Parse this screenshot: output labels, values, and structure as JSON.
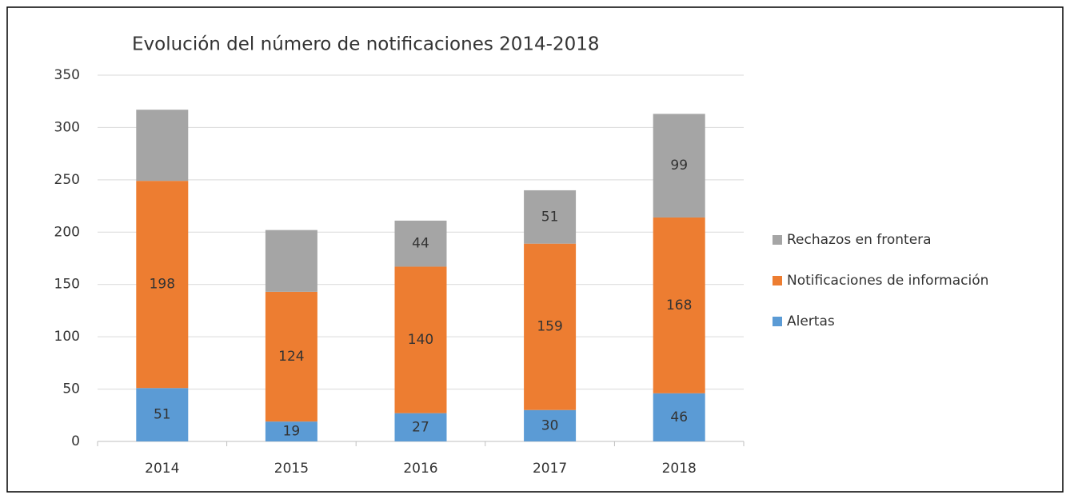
{
  "chart_data": {
    "type": "stacked_bar",
    "title": "Evolución del número de notificaciones 2014-2018",
    "categories": [
      "2014",
      "2015",
      "2016",
      "2017",
      "2018"
    ],
    "series": [
      {
        "name": "Alertas",
        "color": "#5b9bd5",
        "values": [
          51,
          19,
          27,
          30,
          46
        ]
      },
      {
        "name": "Notificaciones de información",
        "color": "#ed7d31",
        "values": [
          198,
          124,
          140,
          159,
          168
        ]
      },
      {
        "name": "Rechazos en frontera",
        "color": "#a5a5a5",
        "values": [
          68,
          59,
          44,
          51,
          99
        ],
        "value_labels": [
          null,
          null,
          "44",
          "51",
          "99"
        ]
      }
    ],
    "ylim": [
      0,
      350
    ],
    "yticks": [
      0,
      50,
      100,
      150,
      200,
      250,
      300,
      350
    ],
    "grid": true,
    "legend": "right"
  }
}
